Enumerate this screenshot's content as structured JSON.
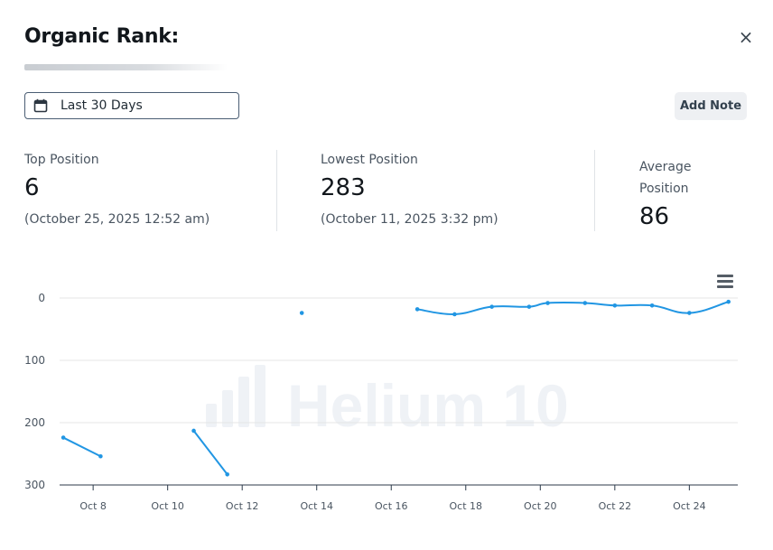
{
  "header": {
    "title": "Organic Rank:",
    "close_label": "×"
  },
  "toolbar": {
    "date_range": "Last 30 Days",
    "add_note_label": "Add Note"
  },
  "stats": {
    "top": {
      "label": "Top Position",
      "value": "6",
      "date": "(October 25, 2025 12:52 am)"
    },
    "lowest": {
      "label": "Lowest Position",
      "value": "283",
      "date": "(October 11, 2025 3:32 pm)"
    },
    "average": {
      "label_line1": "Average",
      "label_line2": "Position",
      "value": "86"
    }
  },
  "watermark": {
    "text": "Helium 10"
  },
  "colors": {
    "series": "#2196e3",
    "grid": "#e6e6e6",
    "axis_text": "#4a5561"
  },
  "chart_data": {
    "type": "line",
    "y_reversed": true,
    "ylim": [
      0,
      300
    ],
    "yticks": [
      0,
      100,
      200,
      300
    ],
    "xticks": [
      "Oct 8",
      "Oct 10",
      "Oct 12",
      "Oct 14",
      "Oct 16",
      "Oct 18",
      "Oct 20",
      "Oct 22",
      "Oct 24"
    ],
    "xrange_days": [
      7.1,
      25.3
    ],
    "segments": [
      [
        {
          "x": 7.2,
          "y": 224
        },
        {
          "x": 8.2,
          "y": 254
        }
      ],
      [
        {
          "x": 10.7,
          "y": 213
        },
        {
          "x": 11.6,
          "y": 283
        }
      ],
      [
        {
          "x": 13.6,
          "y": 24
        }
      ],
      [
        {
          "x": 16.7,
          "y": 18
        },
        {
          "x": 17.7,
          "y": 26
        },
        {
          "x": 18.7,
          "y": 14
        },
        {
          "x": 19.7,
          "y": 14
        },
        {
          "x": 20.2,
          "y": 8
        },
        {
          "x": 21.2,
          "y": 8
        },
        {
          "x": 22.0,
          "y": 12
        },
        {
          "x": 23.0,
          "y": 12
        },
        {
          "x": 24.0,
          "y": 24
        },
        {
          "x": 25.05,
          "y": 6
        }
      ]
    ]
  }
}
